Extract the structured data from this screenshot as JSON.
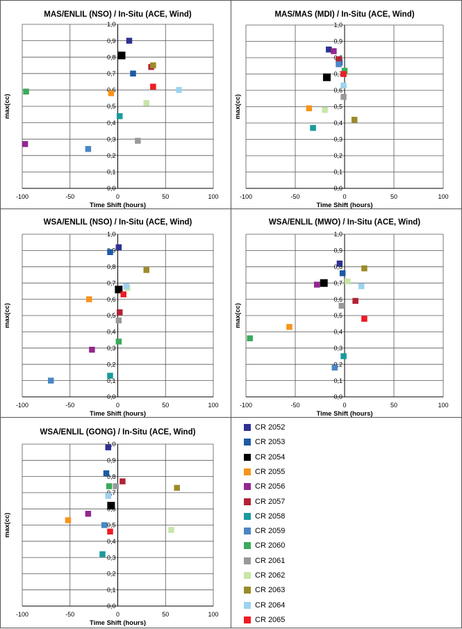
{
  "colors": {
    "CR 2052": "#2e3192",
    "CR 2053": "#1c5aa6",
    "CR 2054": "#000000",
    "CR 2055": "#f7941d",
    "CR 2056": "#93278f",
    "CR 2057": "#b22234",
    "CR 2058": "#1a9a9c",
    "CR 2059": "#4a86c5",
    "CR 2060": "#3aaa5c",
    "CR 2061": "#999999",
    "CR 2062": "#c8e6a8",
    "CR 2063": "#9c8b2a",
    "CR 2064": "#9dd3f0",
    "CR 2065": "#ed1c24"
  },
  "legend": {
    "items": [
      "CR 2052",
      "CR 2053",
      "CR 2054",
      "CR 2055",
      "CR 2056",
      "CR 2057",
      "CR 2058",
      "CR 2059",
      "CR 2060",
      "CR 2061",
      "CR 2062",
      "CR 2063",
      "CR 2064",
      "CR 2065"
    ]
  },
  "chart_data": [
    {
      "type": "scatter",
      "title": "MAS/ENLIL (NSO) / In-Situ (ACE, Wind)",
      "xlabel": "Time Shift (hours)",
      "ylabel": "max(cc)",
      "xlim": [
        -100,
        100
      ],
      "ylim": [
        0,
        1
      ],
      "xticks": [
        "-100",
        "-50",
        "0",
        "50",
        "100"
      ],
      "yticks": [
        "0,0",
        "0,1",
        "0,2",
        "0,3",
        "0,4",
        "0,5",
        "0,6",
        "0,7",
        "0,8",
        "0,9",
        "1,0"
      ],
      "points": [
        {
          "label": "CR 2052",
          "x": 12,
          "y": 0.9
        },
        {
          "label": "CR 2053",
          "x": 16,
          "y": 0.7
        },
        {
          "label": "CR 2054",
          "x": 4,
          "y": 0.81
        },
        {
          "label": "CR 2055",
          "x": -7,
          "y": 0.58
        },
        {
          "label": "CR 2056",
          "x": -97,
          "y": 0.27
        },
        {
          "label": "CR 2057",
          "x": 35,
          "y": 0.74
        },
        {
          "label": "CR 2058",
          "x": 2,
          "y": 0.44
        },
        {
          "label": "CR 2059",
          "x": -31,
          "y": 0.24
        },
        {
          "label": "CR 2060",
          "x": -96,
          "y": 0.59
        },
        {
          "label": "CR 2061",
          "x": 21,
          "y": 0.29
        },
        {
          "label": "CR 2062",
          "x": 30,
          "y": 0.52
        },
        {
          "label": "CR 2063",
          "x": 37,
          "y": 0.75
        },
        {
          "label": "CR 2064",
          "x": 64,
          "y": 0.6
        },
        {
          "label": "CR 2065",
          "x": 37,
          "y": 0.62
        }
      ]
    },
    {
      "type": "scatter",
      "title": "MAS/MAS (MDI) / In-Situ (ACE, Wind)",
      "xlabel": "Time Shift (hours)",
      "ylabel": "max(cc)",
      "xlim": [
        -100,
        100
      ],
      "ylim": [
        0,
        1
      ],
      "xticks": [
        "-100",
        "-50",
        "0",
        "50",
        "100"
      ],
      "yticks": [
        "0,0",
        "0,1",
        "0,2",
        "0,3",
        "0,4",
        "0,5",
        "0,6",
        "0,7",
        "0,8",
        "0,9",
        "1,0"
      ],
      "points": [
        {
          "label": "CR 2052",
          "x": -16,
          "y": 0.85
        },
        {
          "label": "CR 2053",
          "x": -5,
          "y": 0.77
        },
        {
          "label": "CR 2054",
          "x": -18,
          "y": 0.68
        },
        {
          "label": "CR 2055",
          "x": -36,
          "y": 0.49
        },
        {
          "label": "CR 2056",
          "x": -11,
          "y": 0.84
        },
        {
          "label": "CR 2057",
          "x": -6,
          "y": 0.79
        },
        {
          "label": "CR 2058",
          "x": -32,
          "y": 0.37
        },
        {
          "label": "CR 2059",
          "x": -6,
          "y": 0.76
        },
        {
          "label": "CR 2060",
          "x": 0,
          "y": 0.72
        },
        {
          "label": "CR 2061",
          "x": -1,
          "y": 0.56
        },
        {
          "label": "CR 2062",
          "x": -20,
          "y": 0.48
        },
        {
          "label": "CR 2063",
          "x": 10,
          "y": 0.42
        },
        {
          "label": "CR 2064",
          "x": -1,
          "y": 0.63
        },
        {
          "label": "CR 2065",
          "x": -1,
          "y": 0.7
        }
      ]
    },
    {
      "type": "scatter",
      "title": "WSA/ENLIL (NSO) / In-Situ (ACE, Wind)",
      "xlabel": "Time Shift (hours)",
      "ylabel": "max(cc)",
      "xlim": [
        -100,
        100
      ],
      "ylim": [
        0,
        1
      ],
      "xticks": [
        "-100",
        "-50",
        "0",
        "50",
        "100"
      ],
      "yticks": [
        "0,0",
        "0,1",
        "0,2",
        "0,3",
        "0,4",
        "0,5",
        "0,6",
        "0,7",
        "0,8",
        "0,9",
        "1,0"
      ],
      "points": [
        {
          "label": "CR 2052",
          "x": 1,
          "y": 0.92
        },
        {
          "label": "CR 2053",
          "x": -8,
          "y": 0.89
        },
        {
          "label": "CR 2054",
          "x": 1,
          "y": 0.66
        },
        {
          "label": "CR 2055",
          "x": -30,
          "y": 0.6
        },
        {
          "label": "CR 2056",
          "x": -27,
          "y": 0.29
        },
        {
          "label": "CR 2057",
          "x": 2,
          "y": 0.52
        },
        {
          "label": "CR 2058",
          "x": -8,
          "y": 0.13
        },
        {
          "label": "CR 2059",
          "x": -70,
          "y": 0.1
        },
        {
          "label": "CR 2060",
          "x": 1,
          "y": 0.34
        },
        {
          "label": "CR 2061",
          "x": 1,
          "y": 0.47
        },
        {
          "label": "CR 2062",
          "x": 10,
          "y": 0.67
        },
        {
          "label": "CR 2063",
          "x": 30,
          "y": 0.78
        },
        {
          "label": "CR 2064",
          "x": 9,
          "y": 0.68
        },
        {
          "label": "CR 2065",
          "x": 6,
          "y": 0.63
        }
      ]
    },
    {
      "type": "scatter",
      "title": "WSA/ENLIL (MWO) / In-Situ (ACE, Wind)",
      "xlabel": "Time Shift (hours)",
      "ylabel": "max(cc)",
      "xlim": [
        -100,
        100
      ],
      "ylim": [
        0,
        1
      ],
      "xticks": [
        "-100",
        "-50",
        "0",
        "50",
        "100"
      ],
      "yticks": [
        "0,0",
        "0,1",
        "0,2",
        "0,3",
        "0,4",
        "0,5",
        "0,6",
        "0,7",
        "0,8",
        "0,9",
        "1,0"
      ],
      "points": [
        {
          "label": "CR 2052",
          "x": -5,
          "y": 0.82
        },
        {
          "label": "CR 2053",
          "x": -2,
          "y": 0.76
        },
        {
          "label": "CR 2054",
          "x": -21,
          "y": 0.7
        },
        {
          "label": "CR 2055",
          "x": -56,
          "y": 0.43
        },
        {
          "label": "CR 2056",
          "x": -28,
          "y": 0.69
        },
        {
          "label": "CR 2057",
          "x": 11,
          "y": 0.59
        },
        {
          "label": "CR 2058",
          "x": -1,
          "y": 0.25
        },
        {
          "label": "CR 2059",
          "x": -10,
          "y": 0.18
        },
        {
          "label": "CR 2060",
          "x": -96,
          "y": 0.36
        },
        {
          "label": "CR 2061",
          "x": -3,
          "y": 0.56
        },
        {
          "label": "CR 2062",
          "x": 3,
          "y": 0.71
        },
        {
          "label": "CR 2063",
          "x": 20,
          "y": 0.79
        },
        {
          "label": "CR 2064",
          "x": 17,
          "y": 0.68
        },
        {
          "label": "CR 2065",
          "x": 20,
          "y": 0.48
        }
      ]
    },
    {
      "type": "scatter",
      "title": "WSA/ENLIL (GONG) / In-Situ (ACE, Wind)",
      "xlabel": "Time Shift (hours)",
      "ylabel": "max(cc)",
      "xlim": [
        -100,
        100
      ],
      "ylim": [
        0,
        1
      ],
      "xticks": [
        "-100",
        "-50",
        "0",
        "50",
        "100"
      ],
      "yticks": [
        "0,0",
        "0,1",
        "0,2",
        "0,3",
        "0,4",
        "0,5",
        "0,6",
        "0,7",
        "0,8",
        "0,9",
        "1,0"
      ],
      "points": [
        {
          "label": "CR 2052",
          "x": -10,
          "y": 0.98
        },
        {
          "label": "CR 2053",
          "x": -12,
          "y": 0.82
        },
        {
          "label": "CR 2054",
          "x": -7,
          "y": 0.62
        },
        {
          "label": "CR 2055",
          "x": -52,
          "y": 0.53
        },
        {
          "label": "CR 2056",
          "x": -31,
          "y": 0.57
        },
        {
          "label": "CR 2057",
          "x": 5,
          "y": 0.77
        },
        {
          "label": "CR 2058",
          "x": -16,
          "y": 0.32
        },
        {
          "label": "CR 2059",
          "x": -14,
          "y": 0.5
        },
        {
          "label": "CR 2060",
          "x": -9,
          "y": 0.74
        },
        {
          "label": "CR 2061",
          "x": -2,
          "y": 0.74
        },
        {
          "label": "CR 2062",
          "x": 56,
          "y": 0.47
        },
        {
          "label": "CR 2063",
          "x": 62,
          "y": 0.73
        },
        {
          "label": "CR 2064",
          "x": -10,
          "y": 0.68
        },
        {
          "label": "CR 2065",
          "x": -8,
          "y": 0.46
        }
      ]
    }
  ]
}
